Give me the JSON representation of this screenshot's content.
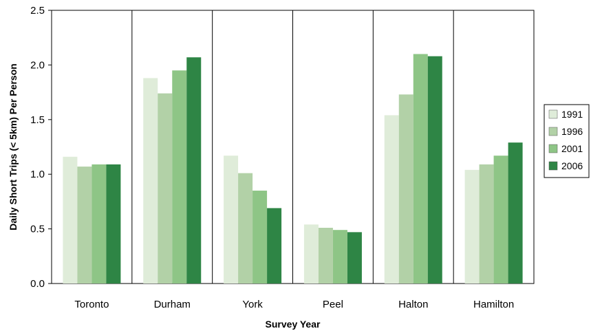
{
  "chart_data": {
    "type": "bar",
    "title": "",
    "xlabel": "Survey Year",
    "ylabel": "Daily Short Trips (< 5km) Per Person",
    "ylim": [
      0,
      2.5
    ],
    "yticks": [
      "0.0",
      "0.5",
      "1.0",
      "1.5",
      "2.0",
      "2.5"
    ],
    "categories": [
      "Toronto",
      "Durham",
      "York",
      "Peel",
      "Halton",
      "Hamilton"
    ],
    "legend_position": "right",
    "grid": false,
    "series": [
      {
        "name": "1991",
        "color": "#dfecd9",
        "values": [
          1.16,
          1.88,
          1.17,
          0.54,
          1.54,
          1.04
        ]
      },
      {
        "name": "1996",
        "color": "#b2d1a7",
        "values": [
          1.07,
          1.74,
          1.01,
          0.51,
          1.73,
          1.09
        ]
      },
      {
        "name": "2001",
        "color": "#8ec586",
        "values": [
          1.09,
          1.95,
          0.85,
          0.49,
          2.1,
          1.17
        ]
      },
      {
        "name": "2006",
        "color": "#2e8545",
        "values": [
          1.09,
          2.07,
          0.69,
          0.47,
          2.08,
          1.29
        ]
      }
    ]
  }
}
